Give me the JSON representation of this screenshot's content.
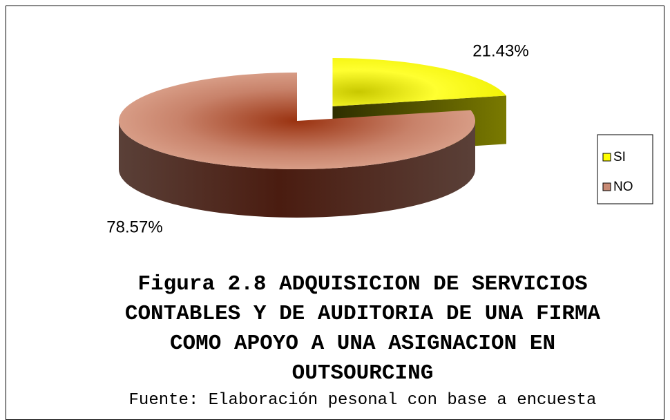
{
  "chart_data": {
    "type": "pie",
    "title": "Figura 2.8 ADQUISICION DE SERVICIOS CONTABLES Y DE AUDITORIA DE UNA FIRMA COMO APOYO A UNA ASIGNACION EN OUTSOURCING",
    "source": "Fuente: Elaboración pesonal con base a encuesta",
    "categories": [
      "SI",
      "NO"
    ],
    "values": [
      21.43,
      78.57
    ],
    "value_labels": [
      "21.43%",
      "78.57%"
    ],
    "colors": [
      "#ffff00",
      "#c88a74"
    ],
    "legend": "right"
  }
}
